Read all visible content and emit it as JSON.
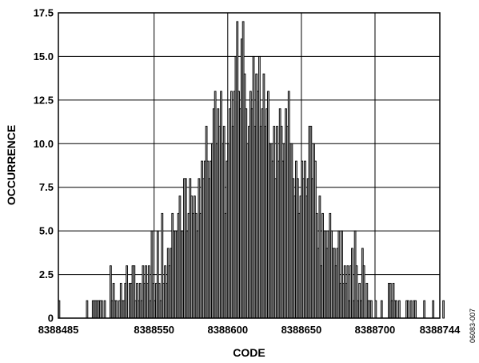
{
  "figure_id": "06083-007",
  "chart_data": {
    "type": "bar",
    "xlabel": "CODE",
    "ylabel": "OCCURRENCE",
    "xlim": [
      8388485,
      8388744
    ],
    "ylim": [
      0,
      17.5
    ],
    "x_ticks": [
      8388485,
      8388550,
      8388600,
      8388650,
      8388700,
      8388744
    ],
    "x_tick_labels": [
      "8388485",
      "8388550",
      "8388600",
      "8388650",
      "8388700",
      "8388744"
    ],
    "y_ticks": [
      0,
      2.5,
      5.0,
      7.5,
      10.0,
      12.5,
      15.0,
      17.5
    ],
    "y_tick_labels": [
      "0",
      "2.5",
      "5.0",
      "7.5",
      "10.0",
      "12.5",
      "15.0",
      "17.5"
    ],
    "grid": true,
    "bin_width": 1,
    "bin_start": 8388485,
    "values": [
      1,
      0,
      0,
      0,
      0,
      0,
      0,
      0,
      0,
      0,
      0,
      0,
      0,
      0,
      0,
      0,
      0,
      0,
      0,
      1,
      0,
      0,
      0,
      1,
      1,
      1,
      1,
      1,
      1,
      1,
      0,
      1,
      0,
      0,
      0,
      3,
      1,
      2,
      1,
      1,
      0,
      1,
      2,
      1,
      1,
      2,
      3,
      0,
      2,
      2,
      3,
      3,
      1,
      2,
      1,
      2,
      1,
      3,
      2,
      3,
      2,
      3,
      1,
      5,
      2,
      1,
      2,
      5,
      2,
      1,
      6,
      2,
      3,
      2,
      4,
      3,
      4,
      6,
      5,
      5,
      5,
      6,
      7,
      5,
      5,
      8,
      8,
      5,
      6,
      8,
      7,
      6,
      7,
      6,
      5,
      8,
      6,
      9,
      8,
      9,
      11,
      9,
      8,
      9,
      10,
      12,
      13,
      10,
      12,
      11,
      13,
      10,
      11,
      6,
      9,
      10,
      12,
      13,
      11,
      13,
      15,
      17,
      13,
      12,
      16,
      17,
      14,
      12,
      10,
      11,
      13,
      12,
      15,
      11,
      14,
      13,
      15,
      11,
      12,
      14,
      11,
      12,
      13,
      10,
      10,
      9,
      11,
      8,
      11,
      9,
      12,
      11,
      9,
      10,
      12,
      11,
      13,
      10,
      10,
      8,
      7,
      9,
      8,
      6,
      7,
      9,
      8,
      9,
      7,
      8,
      11,
      11,
      8,
      10,
      9,
      6,
      4,
      7,
      3,
      6,
      5,
      5,
      4,
      5,
      6,
      5,
      4,
      4,
      3,
      4,
      5,
      2,
      5,
      2,
      3,
      2,
      3,
      1,
      3,
      4,
      1,
      5,
      3,
      1,
      2,
      1,
      4,
      3,
      0,
      2,
      1,
      1,
      1,
      0,
      0,
      1,
      0,
      0,
      0,
      1,
      0,
      0,
      0,
      0,
      2,
      2,
      1,
      2,
      1,
      1,
      0,
      1,
      0,
      0,
      0,
      0,
      1,
      1,
      0,
      1,
      0,
      1,
      1,
      0,
      0,
      0,
      0,
      0,
      1,
      0,
      0,
      0,
      0,
      0,
      1,
      0,
      0,
      0,
      0,
      0,
      0,
      1
    ]
  }
}
